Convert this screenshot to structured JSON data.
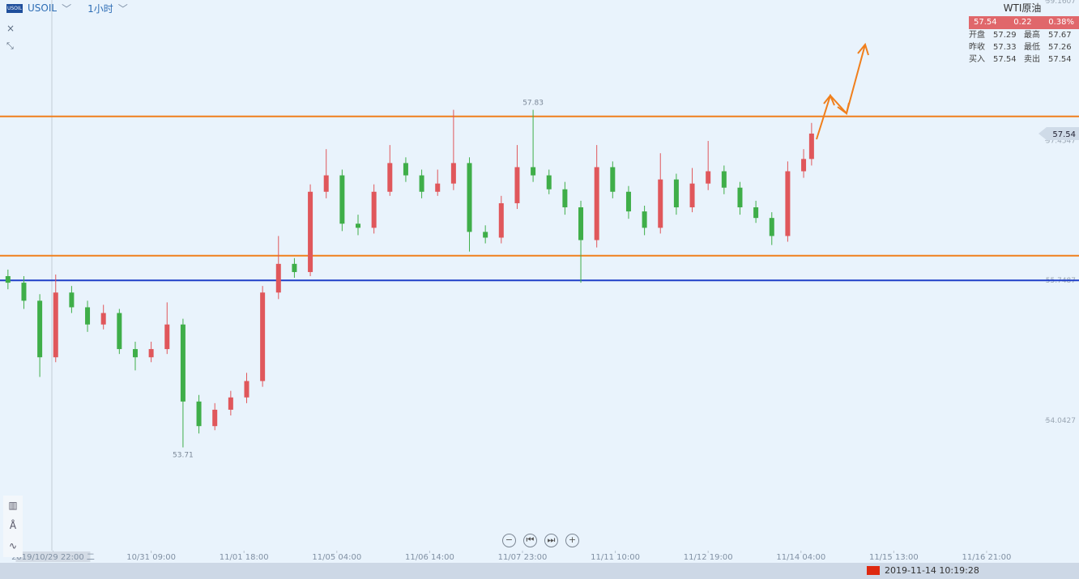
{
  "header": {
    "symbol": "USOIL",
    "interval": "1小时"
  },
  "quote": {
    "name": "WTI原油",
    "price": "57.54",
    "change": "0.22",
    "change_pct": "0.38%",
    "rows": [
      [
        "开盘",
        "57.29",
        "最高",
        "57.67"
      ],
      [
        "昨收",
        "57.33",
        "最低",
        "57.26"
      ],
      [
        "买入",
        "57.54",
        "卖出",
        "57.54"
      ]
    ]
  },
  "chart_data": {
    "type": "candlestick",
    "x": [
      3,
      9,
      15,
      21,
      27,
      33,
      39,
      45,
      51,
      57,
      63,
      69,
      75,
      81,
      87,
      93,
      99,
      105,
      111,
      117,
      123,
      129,
      135,
      141,
      147,
      153,
      159,
      165,
      171,
      177,
      183,
      189,
      195,
      201,
      207,
      213,
      219,
      225,
      231,
      237,
      243,
      249,
      255,
      261,
      267,
      273,
      279,
      285,
      291,
      297,
      303,
      306
    ],
    "open": [
      55.8,
      55.72,
      55.5,
      54.81,
      55.6,
      55.42,
      55.21,
      55.35,
      54.91,
      54.81,
      54.91,
      55.21,
      54.27,
      53.97,
      54.17,
      54.32,
      54.52,
      55.6,
      55.95,
      55.85,
      56.83,
      57.03,
      56.44,
      56.39,
      56.83,
      57.18,
      57.03,
      56.83,
      56.93,
      57.18,
      56.34,
      56.27,
      56.69,
      57.13,
      57.03,
      56.86,
      56.64,
      56.24,
      57.13,
      56.83,
      56.59,
      56.39,
      56.98,
      56.64,
      56.93,
      57.08,
      56.88,
      56.64,
      56.51,
      56.29,
      57.08,
      57.23
    ],
    "high": [
      55.88,
      55.8,
      55.58,
      55.82,
      55.68,
      55.5,
      55.45,
      55.4,
      55.0,
      55.0,
      55.48,
      55.28,
      54.35,
      54.25,
      54.4,
      54.62,
      55.68,
      56.29,
      56.02,
      56.92,
      57.35,
      57.1,
      56.55,
      56.92,
      57.4,
      57.25,
      57.1,
      57.1,
      57.83,
      57.25,
      56.42,
      56.78,
      57.4,
      57.83,
      57.1,
      56.95,
      56.72,
      57.4,
      57.2,
      56.9,
      56.66,
      57.3,
      57.05,
      57.12,
      57.45,
      57.15,
      56.95,
      56.72,
      56.58,
      57.2,
      57.35,
      57.67
    ],
    "low": [
      55.64,
      55.4,
      54.57,
      54.75,
      55.35,
      55.12,
      55.15,
      54.85,
      54.65,
      54.75,
      54.85,
      53.71,
      53.88,
      53.92,
      54.1,
      54.25,
      54.45,
      55.52,
      55.78,
      55.8,
      56.75,
      56.35,
      56.3,
      56.32,
      56.78,
      56.95,
      56.75,
      56.78,
      56.85,
      56.1,
      56.2,
      56.2,
      56.62,
      56.95,
      56.8,
      56.55,
      55.72,
      56.15,
      56.75,
      56.5,
      56.3,
      56.32,
      56.55,
      56.58,
      56.85,
      56.8,
      56.55,
      56.45,
      56.18,
      56.22,
      57.0,
      57.15
    ],
    "close": [
      55.72,
      55.5,
      54.81,
      55.6,
      55.42,
      55.21,
      55.35,
      54.91,
      54.81,
      54.91,
      55.21,
      54.27,
      53.97,
      54.17,
      54.32,
      54.52,
      55.6,
      55.95,
      55.85,
      56.83,
      57.03,
      56.44,
      56.39,
      56.83,
      57.18,
      57.03,
      56.83,
      56.93,
      57.18,
      56.34,
      56.27,
      56.69,
      57.13,
      57.03,
      56.86,
      56.64,
      56.24,
      57.13,
      56.83,
      56.59,
      56.39,
      56.98,
      56.64,
      56.93,
      57.08,
      56.88,
      56.64,
      56.51,
      56.29,
      57.08,
      57.23,
      57.54
    ],
    "up_color": "#e0575b",
    "down_color": "#3fae49",
    "xlim": [
      0,
      394
    ],
    "ylim": [
      52.45,
      59.17
    ],
    "yticks": [
      54.0427,
      55.7487,
      57.4547,
      59.1607
    ],
    "xticks": [
      {
        "value": 20,
        "label": "2019/10/29 22:00 二"
      },
      {
        "value": 57,
        "label": "10/31 09:00"
      },
      {
        "value": 92,
        "label": "11/01 18:00"
      },
      {
        "value": 127,
        "label": "11/05 04:00"
      },
      {
        "value": 162,
        "label": "11/06 14:00"
      },
      {
        "value": 197,
        "label": "11/07 23:00"
      },
      {
        "value": 232,
        "label": "11/11 10:00"
      },
      {
        "value": 267,
        "label": "11/12 19:00"
      },
      {
        "value": 302,
        "label": "11/14 04:00"
      },
      {
        "value": 337,
        "label": "11/15 13:00"
      },
      {
        "value": 372,
        "label": "11/16 21:00"
      }
    ],
    "hlines": [
      {
        "value": 57.75,
        "color": "#f07f1c"
      },
      {
        "value": 56.05,
        "color": "#f07f1c"
      },
      {
        "value": 55.7487,
        "color": "#1f3fc8"
      }
    ],
    "annotations": [
      {
        "x": 201,
        "value": 57.83
      },
      {
        "x": 69,
        "value": 53.71
      }
    ]
  },
  "footer": {
    "datetime": "2019-11-14 10:19:28"
  }
}
